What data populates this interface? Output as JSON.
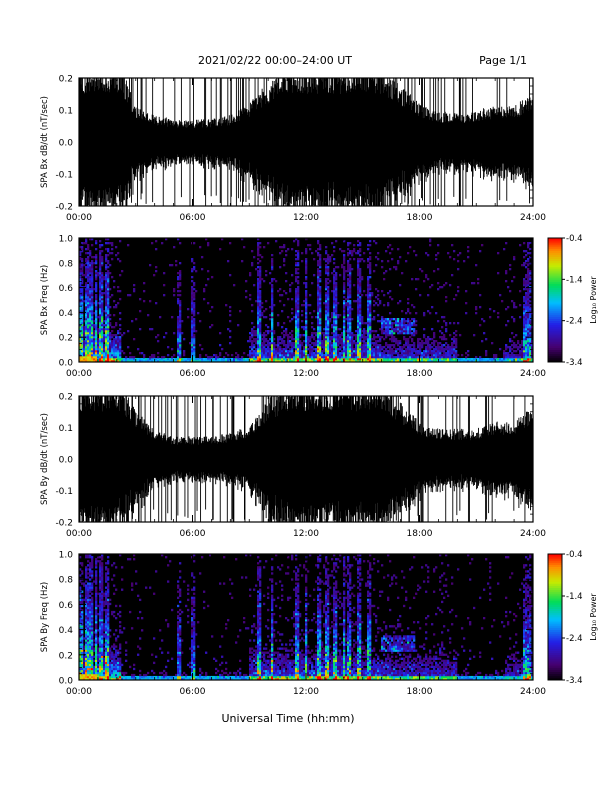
{
  "header": {
    "title": "2021/02/22  00:00–24:00 UT",
    "page": "Page 1/1"
  },
  "footer": {
    "xlabel": "Universal Time (hh:mm)"
  },
  "colorbar": {
    "label": "Log₁₀ Power",
    "ticks": [
      "-0.4",
      "-1.4",
      "-2.4",
      "-3.4"
    ],
    "range": [
      -3.4,
      -0.4
    ]
  },
  "chart_data": [
    {
      "type": "line",
      "ylabel": "SPA Bx dB/dt (nT/sec)",
      "xlim_hours": [
        0,
        24
      ],
      "ylim": [
        -0.2,
        0.2
      ],
      "x_ticks": [
        "00:00",
        "06:00",
        "12:00",
        "18:00",
        "24:00"
      ],
      "y_ticks": [
        "-0.2",
        "-0.1",
        "0.0",
        "0.1",
        "0.2"
      ],
      "envelope": {
        "hours": [
          0,
          2.2,
          3,
          4,
          5,
          6,
          7,
          8,
          9,
          10,
          11,
          12,
          13,
          14,
          15,
          16,
          17,
          18,
          19,
          20,
          21,
          22,
          23,
          24
        ],
        "amplitude": [
          0.2,
          0.2,
          0.1,
          0.07,
          0.06,
          0.06,
          0.06,
          0.07,
          0.1,
          0.16,
          0.2,
          0.2,
          0.2,
          0.2,
          0.2,
          0.2,
          0.15,
          0.1,
          0.08,
          0.08,
          0.08,
          0.1,
          0.1,
          0.12
        ]
      }
    },
    {
      "type": "heatmap",
      "ylabel": "SPA Bx Freq (Hz)",
      "xlim_hours": [
        0,
        24
      ],
      "ylim": [
        0,
        1.0
      ],
      "x_ticks": [
        "00:00",
        "06:00",
        "12:00",
        "18:00",
        "24:00"
      ],
      "y_ticks": [
        "0.0",
        "0.2",
        "0.4",
        "0.6",
        "0.8",
        "1.0"
      ],
      "zlim": [
        -3.4,
        -0.4
      ]
    },
    {
      "type": "line",
      "ylabel": "SPA By dB/dt (nT/sec)",
      "xlim_hours": [
        0,
        24
      ],
      "ylim": [
        -0.2,
        0.2
      ],
      "x_ticks": [
        "00:00",
        "06:00",
        "12:00",
        "18:00",
        "24:00"
      ],
      "y_ticks": [
        "-0.2",
        "-0.1",
        "0.0",
        "0.1",
        "0.2"
      ],
      "envelope": {
        "hours": [
          0,
          2.2,
          3,
          4,
          5,
          6,
          7,
          8,
          9,
          10,
          11,
          12,
          13,
          14,
          15,
          16,
          17,
          18,
          19,
          20,
          21,
          22,
          23,
          24
        ],
        "amplitude": [
          0.2,
          0.2,
          0.13,
          0.08,
          0.06,
          0.06,
          0.06,
          0.07,
          0.09,
          0.16,
          0.2,
          0.2,
          0.2,
          0.2,
          0.2,
          0.2,
          0.15,
          0.1,
          0.08,
          0.08,
          0.08,
          0.1,
          0.1,
          0.14
        ]
      }
    },
    {
      "type": "heatmap",
      "ylabel": "SPA By Freq (Hz)",
      "xlim_hours": [
        0,
        24
      ],
      "ylim": [
        0,
        1.0
      ],
      "x_ticks": [
        "00:00",
        "06:00",
        "12:00",
        "18:00",
        "24:00"
      ],
      "y_ticks": [
        "0.0",
        "0.2",
        "0.4",
        "0.6",
        "0.8",
        "1.0"
      ],
      "zlim": [
        -3.4,
        -0.4
      ]
    }
  ]
}
